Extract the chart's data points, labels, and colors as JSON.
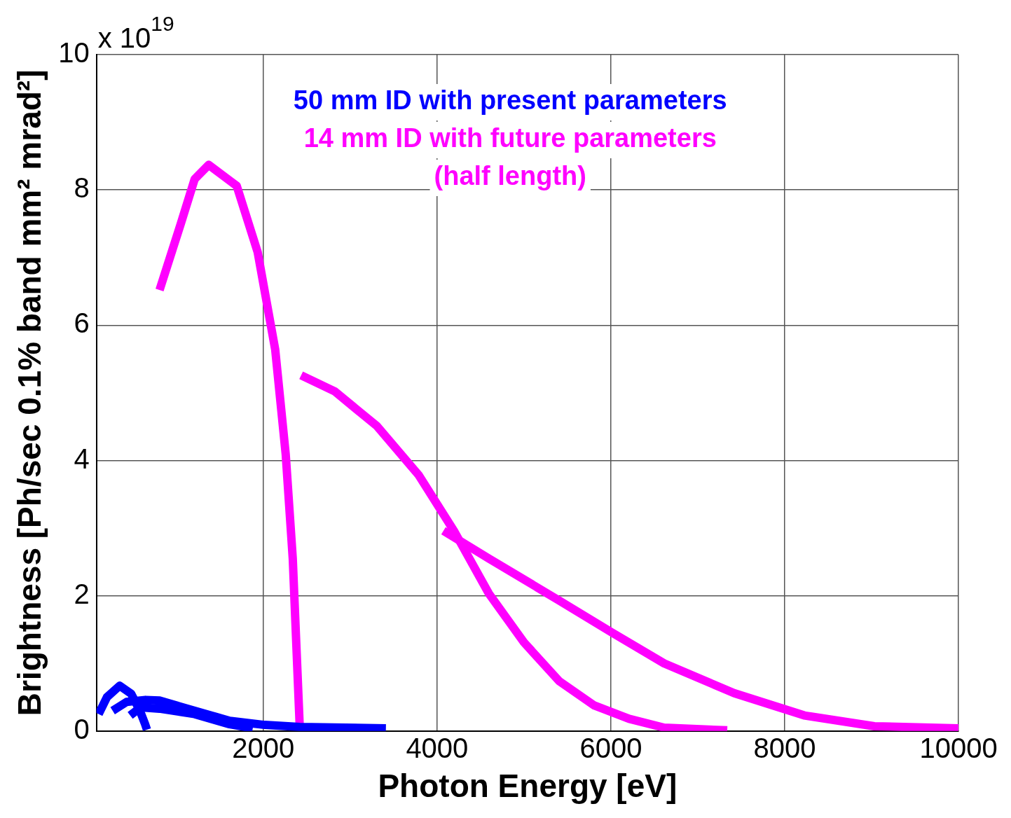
{
  "chart_data": {
    "type": "line",
    "xlabel": "Photon Energy [eV]",
    "ylabel": "Brightness [Ph/sec 0.1% band mm² mrad²]",
    "annotations": [
      "x 10$^{19}$"
    ],
    "xlim": [
      80,
      10000
    ],
    "xticks": [
      2000,
      4000,
      6000,
      8000,
      10000
    ],
    "ylim": [
      0,
      10
    ],
    "yticks": [
      0,
      2,
      4,
      6,
      8,
      10
    ],
    "grid": true,
    "legend": "top",
    "line_style": "solid",
    "marker": "none",
    "series": [
      {
        "name": "50 mm ID with present parameters",
        "color": "#0000ff",
        "x": [
          105,
          200,
          347,
          480,
          580,
          640,
          661
        ],
        "values": [
          0.25,
          0.5,
          0.67,
          0.55,
          0.3,
          0.1,
          0.02
        ]
      },
      {
        "color": "#0000ff",
        "x": [
          266,
          427,
          645,
          806,
          1073,
          1347,
          1613,
          2016,
          2419,
          3411
        ],
        "values": [
          0.3,
          0.43,
          0.46,
          0.45,
          0.35,
          0.25,
          0.15,
          0.09,
          0.06,
          0.04
        ]
      },
      {
        "color": "#0000ff",
        "x": [
          468,
          589,
          806,
          1210,
          1613,
          1879
        ],
        "values": [
          0.23,
          0.35,
          0.33,
          0.25,
          0.1,
          0.04
        ]
      },
      {
        "name": "14 mm ID with future parameters (half length)",
        "color": "#ff00ff",
        "x": [
          806,
          1048,
          1210,
          1371,
          1694,
          1935,
          2137,
          2258,
          2339,
          2419
        ],
        "values": [
          6.52,
          7.49,
          8.16,
          8.37,
          8.06,
          7.08,
          5.64,
          4.09,
          2.55,
          0.07
        ]
      },
      {
        "color": "#ff00ff",
        "x": [
          2435,
          2823,
          3306,
          3790,
          4194,
          4597,
          5000,
          5403,
          5806,
          6210,
          6613,
          7339
        ],
        "values": [
          5.26,
          5.02,
          4.51,
          3.78,
          2.96,
          2.03,
          1.31,
          0.74,
          0.38,
          0.18,
          0.05,
          0.01
        ]
      },
      {
        "color": "#ff00ff",
        "x": [
          4073,
          4597,
          5403,
          6008,
          6613,
          7419,
          8226,
          9032,
          10000
        ],
        "values": [
          2.96,
          2.55,
          1.93,
          1.46,
          1.0,
          0.56,
          0.23,
          0.07,
          0.04
        ]
      }
    ]
  }
}
